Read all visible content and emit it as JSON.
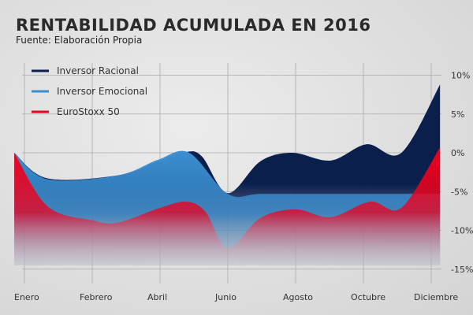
{
  "chart_data": {
    "type": "area",
    "title": "RENTABILIDAD ACUMULADA EN 2016",
    "subtitle": "Fuente: Elaboración Propia",
    "categories": [
      "Enero",
      "Febrero",
      "Abril",
      "Junio",
      "Agosto",
      "Octubre",
      "Diciembre"
    ],
    "yticks": [
      "10%",
      "5%",
      "0%",
      "-5%",
      "-10%",
      "-15%"
    ],
    "ylim": [
      -15,
      10
    ],
    "grid": true,
    "legend_position": "top-left",
    "series": [
      {
        "name": "Inversor Racional",
        "color": "#0b1f4d",
        "x": [
          -0.15,
          0.34,
          1.38,
          1.97,
          2.38,
          2.62,
          3.0,
          3.48,
          3.95,
          4.52,
          5.05,
          5.56,
          6.13
        ],
        "y": [
          0,
          -3.3,
          -2.9,
          -1.1,
          0.1,
          -0.5,
          -5.2,
          -1.1,
          0,
          -1.0,
          1.1,
          0,
          8.8
        ]
      },
      {
        "name": "Inversor Emocional",
        "color": "#3a8ed0",
        "x": [
          -0.15,
          0.34,
          1.38,
          1.97,
          2.43,
          3.0,
          3.5,
          4.5,
          5.5,
          6.13
        ],
        "y": [
          0,
          -3.4,
          -2.9,
          -0.9,
          0,
          -5.3,
          -5.3,
          -5.3,
          -5.3,
          -5.3
        ]
      },
      {
        "name": "EuroStoxx 50",
        "color": "#e8001c",
        "x": [
          -0.15,
          0.34,
          1.0,
          1.38,
          1.97,
          2.38,
          2.67,
          3.0,
          3.48,
          4.0,
          4.52,
          5.1,
          5.56,
          6.13
        ],
        "y": [
          0,
          -6.9,
          -8.7,
          -9.0,
          -7.2,
          -6.3,
          -7.6,
          -12.3,
          -8.4,
          -7.3,
          -8.3,
          -6.3,
          -7.1,
          0.7
        ]
      }
    ]
  }
}
